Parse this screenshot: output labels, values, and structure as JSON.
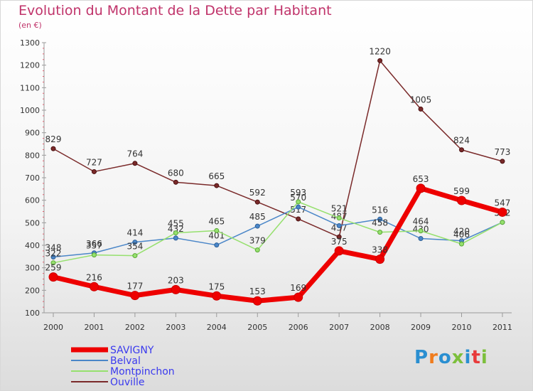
{
  "header": {
    "title": "Evolution du Montant de la Dette par Habitant",
    "subtitle": "(en €)"
  },
  "logo": {
    "text": "Proxiti"
  },
  "chart_data": {
    "type": "line",
    "title": "Evolution du Montant de la Dette par Habitant",
    "subtitle": "(en €)",
    "xlabel": "",
    "ylabel": "",
    "x": [
      "2000",
      "2001",
      "2002",
      "2003",
      "2004",
      "2005",
      "2006",
      "2007",
      "2008",
      "2009",
      "2010",
      "2011"
    ],
    "ylim": [
      100,
      1300
    ],
    "yticks": [
      100,
      200,
      300,
      400,
      500,
      600,
      700,
      800,
      900,
      1000,
      1100,
      1200,
      1300
    ],
    "grid": false,
    "legend": "bottom-left",
    "series": [
      {
        "name": "Ouville",
        "color": "#7a2a2a",
        "values": [
          829,
          727,
          764,
          680,
          665,
          592,
          517,
          437,
          1220,
          1005,
          824,
          773
        ]
      },
      {
        "name": "Belval",
        "color": "#4a86c8",
        "values": [
          348,
          366,
          414,
          432,
          401,
          485,
          570,
          487,
          516,
          430,
          420,
          502
        ]
      },
      {
        "name": "Montpinchon",
        "color": "#96e06e",
        "values": [
          322,
          357,
          354,
          455,
          465,
          379,
          593,
          521,
          458,
          464,
          406,
          502
        ]
      },
      {
        "name": "SAVIGNY",
        "color": "#ee0000",
        "values": [
          259,
          216,
          177,
          203,
          175,
          153,
          169,
          375,
          338,
          653,
          599,
          547
        ]
      }
    ]
  }
}
